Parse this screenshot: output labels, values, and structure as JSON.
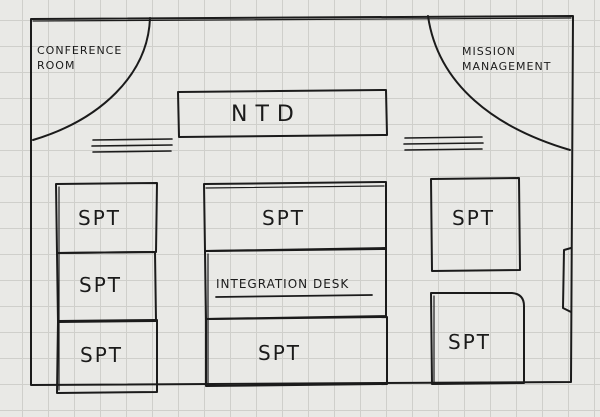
{
  "rooms": {
    "conference": {
      "line1": "Conference",
      "line2": "Room"
    },
    "mission": {
      "line1": "Mission",
      "line2": "Management"
    }
  },
  "ntd_label": "NTD",
  "integration_desk_label": "Integration Desk",
  "spt_label": "SPT",
  "colors": {
    "ink": "#1b1b1b",
    "paper": "#e9e9e6",
    "grid": "#cfcfcb"
  }
}
